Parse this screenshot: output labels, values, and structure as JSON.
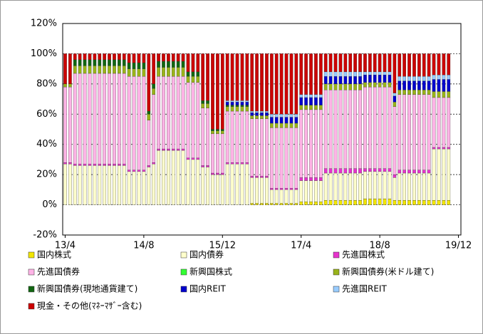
{
  "chart_data": {
    "type": "stacked_bar",
    "categories": [
      "13/4",
      null,
      null,
      null,
      null,
      null,
      null,
      null,
      null,
      null,
      null,
      null,
      null,
      null,
      null,
      null,
      "14/8",
      null,
      null,
      null,
      null,
      null,
      null,
      null,
      null,
      null,
      null,
      null,
      null,
      null,
      null,
      null,
      "15/12",
      null,
      null,
      null,
      null,
      null,
      null,
      null,
      null,
      null,
      null,
      null,
      null,
      null,
      null,
      null,
      "17/4",
      null,
      null,
      null,
      null,
      null,
      null,
      null,
      null,
      null,
      null,
      null,
      null,
      null,
      null,
      null,
      "18/8",
      null,
      null,
      null,
      null,
      null,
      null,
      null,
      null,
      null,
      null,
      null,
      null,
      null,
      null,
      null,
      "19/12"
    ],
    "series": [
      {
        "name": "国内株式",
        "color": "#f2e600",
        "values": [
          0,
          0,
          0,
          0,
          0,
          0,
          0,
          0,
          0,
          0,
          0,
          0,
          0,
          0,
          0,
          0,
          0,
          0,
          0,
          0,
          0,
          0,
          0,
          0,
          0,
          0,
          0,
          0,
          0,
          0,
          0,
          0,
          0,
          0,
          0,
          0,
          0,
          0,
          1,
          1,
          1,
          1,
          1,
          1,
          1,
          1,
          1,
          1,
          2,
          2,
          2,
          2,
          2,
          3,
          3,
          3,
          3,
          3,
          3,
          3,
          3,
          4,
          4,
          4,
          4,
          4,
          4,
          3,
          3,
          3,
          3,
          3,
          3,
          3,
          3,
          3,
          3,
          3,
          3,
          null,
          null
        ]
      },
      {
        "name": "国内債券",
        "color": "#ffffcc",
        "values": [
          27,
          27,
          26,
          26,
          26,
          26,
          26,
          26,
          26,
          26,
          26,
          26,
          26,
          22,
          22,
          22,
          22,
          25,
          27,
          36,
          36,
          36,
          36,
          36,
          36,
          30,
          30,
          30,
          25,
          25,
          20,
          20,
          20,
          27,
          27,
          27,
          27,
          27,
          17,
          17,
          17,
          17,
          9,
          9,
          9,
          9,
          9,
          9,
          14,
          14,
          14,
          14,
          14,
          18,
          18,
          18,
          18,
          18,
          18,
          18,
          18,
          18,
          18,
          18,
          18,
          18,
          18,
          15,
          18,
          18,
          18,
          18,
          18,
          18,
          18,
          34,
          34,
          34,
          34,
          null,
          null
        ]
      },
      {
        "name": "先進国株式",
        "color": "#e633cc",
        "values": [
          1,
          1,
          1,
          1,
          1,
          1,
          1,
          1,
          1,
          1,
          1,
          1,
          1,
          1,
          1,
          1,
          1,
          1,
          1,
          1,
          1,
          1,
          1,
          1,
          1,
          1,
          1,
          1,
          1,
          1,
          1,
          1,
          1,
          1,
          1,
          1,
          1,
          1,
          1,
          1,
          1,
          1,
          1,
          1,
          1,
          1,
          1,
          1,
          2,
          2,
          2,
          2,
          2,
          3,
          3,
          3,
          3,
          3,
          3,
          3,
          3,
          2,
          2,
          2,
          2,
          2,
          2,
          2,
          2,
          2,
          2,
          2,
          2,
          2,
          2,
          1,
          1,
          1,
          1,
          null,
          null
        ]
      },
      {
        "name": "先進国債券",
        "color": "#ffb3e6",
        "values": [
          50,
          50,
          60,
          60,
          60,
          60,
          60,
          60,
          60,
          60,
          60,
          60,
          60,
          62,
          62,
          62,
          62,
          30,
          45,
          48,
          48,
          48,
          48,
          48,
          48,
          50,
          50,
          50,
          38,
          38,
          26,
          26,
          26,
          34,
          34,
          34,
          34,
          34,
          38,
          38,
          38,
          38,
          40,
          40,
          40,
          40,
          40,
          40,
          45,
          45,
          45,
          45,
          45,
          52,
          52,
          52,
          52,
          52,
          52,
          52,
          52,
          54,
          54,
          54,
          54,
          54,
          54,
          45,
          50,
          50,
          50,
          50,
          50,
          50,
          50,
          33,
          33,
          33,
          33,
          null,
          null
        ]
      },
      {
        "name": "新興国株式",
        "color": "#33ff33",
        "values": [
          0,
          0,
          0,
          0,
          0,
          0,
          0,
          0,
          0,
          0,
          0,
          0,
          0,
          0,
          0,
          0,
          0,
          0,
          0,
          0,
          0,
          0,
          0,
          0,
          0,
          0,
          0,
          0,
          0,
          0,
          0,
          0,
          0,
          0,
          0,
          0,
          0,
          0,
          0,
          0,
          0,
          0,
          0,
          0,
          0,
          0,
          0,
          0,
          0,
          0,
          0,
          0,
          0,
          0,
          0,
          0,
          0,
          0,
          0,
          0,
          0,
          0,
          0,
          0,
          0,
          0,
          0,
          0,
          0,
          0,
          0,
          0,
          0,
          0,
          0,
          0,
          0,
          0,
          0,
          null,
          null
        ]
      },
      {
        "name": "新興国債券(米ドル建て)",
        "color": "#99b31a",
        "values": [
          2,
          2,
          5,
          5,
          5,
          5,
          5,
          5,
          5,
          5,
          5,
          5,
          5,
          5,
          5,
          5,
          5,
          4,
          4,
          6,
          6,
          6,
          6,
          6,
          6,
          4,
          4,
          4,
          3,
          3,
          2,
          2,
          2,
          3,
          3,
          3,
          3,
          3,
          2,
          2,
          2,
          2,
          3,
          3,
          3,
          3,
          3,
          3,
          3,
          3,
          3,
          3,
          3,
          4,
          4,
          4,
          4,
          4,
          4,
          4,
          4,
          3,
          3,
          3,
          3,
          3,
          3,
          3,
          3,
          3,
          3,
          3,
          3,
          3,
          3,
          4,
          4,
          4,
          4,
          null,
          null
        ]
      },
      {
        "name": "新興国債券(現地通貨建て)",
        "color": "#116611",
        "values": [
          0,
          0,
          4,
          4,
          4,
          4,
          4,
          4,
          4,
          4,
          4,
          4,
          4,
          4,
          4,
          4,
          4,
          2,
          3,
          4,
          4,
          4,
          4,
          4,
          4,
          3,
          3,
          3,
          2,
          2,
          1,
          1,
          1,
          1,
          1,
          1,
          1,
          1,
          0,
          0,
          0,
          0,
          0,
          0,
          0,
          0,
          0,
          0,
          0,
          0,
          0,
          0,
          0,
          0,
          0,
          0,
          0,
          0,
          0,
          0,
          0,
          0,
          0,
          0,
          0,
          0,
          0,
          0,
          0,
          0,
          0,
          0,
          0,
          0,
          0,
          0,
          0,
          0,
          0,
          null,
          null
        ]
      },
      {
        "name": "国内REIT",
        "color": "#0000cc",
        "values": [
          0,
          0,
          0,
          0,
          0,
          0,
          0,
          0,
          0,
          0,
          0,
          0,
          0,
          0,
          0,
          0,
          0,
          0,
          0,
          0,
          0,
          0,
          0,
          0,
          0,
          0,
          0,
          0,
          0,
          0,
          0,
          0,
          0,
          2,
          2,
          2,
          2,
          2,
          2,
          2,
          2,
          2,
          4,
          4,
          4,
          4,
          4,
          4,
          5,
          5,
          5,
          5,
          5,
          5,
          5,
          5,
          5,
          5,
          5,
          5,
          5,
          5,
          5,
          5,
          5,
          5,
          5,
          4,
          6,
          6,
          6,
          6,
          6,
          6,
          6,
          8,
          8,
          8,
          8,
          null,
          null
        ]
      },
      {
        "name": "先進国REIT",
        "color": "#99ccff",
        "values": [
          0,
          0,
          0,
          0,
          0,
          0,
          0,
          0,
          0,
          0,
          0,
          0,
          0,
          0,
          0,
          0,
          0,
          0,
          0,
          0,
          0,
          0,
          0,
          0,
          0,
          0,
          0,
          0,
          0,
          0,
          0,
          0,
          0,
          1,
          1,
          1,
          1,
          1,
          1,
          1,
          1,
          1,
          2,
          2,
          2,
          2,
          2,
          2,
          2,
          2,
          2,
          2,
          2,
          3,
          3,
          3,
          3,
          3,
          3,
          3,
          3,
          2,
          2,
          2,
          2,
          2,
          2,
          2,
          3,
          3,
          3,
          3,
          3,
          3,
          3,
          3,
          3,
          3,
          3,
          null,
          null
        ]
      },
      {
        "name": "現金・その他(ﾏﾈｰﾏｻﾞｰ含む)",
        "color": "#cc0000",
        "values": [
          20,
          20,
          4,
          4,
          4,
          4,
          4,
          4,
          4,
          4,
          4,
          4,
          4,
          6,
          6,
          6,
          6,
          38,
          20,
          5,
          5,
          5,
          5,
          5,
          5,
          12,
          12,
          12,
          31,
          31,
          50,
          50,
          50,
          31,
          31,
          31,
          31,
          31,
          38,
          38,
          38,
          38,
          40,
          40,
          40,
          40,
          40,
          40,
          27,
          27,
          27,
          27,
          27,
          12,
          12,
          12,
          12,
          12,
          12,
          12,
          12,
          12,
          12,
          12,
          12,
          12,
          12,
          26,
          15,
          15,
          15,
          15,
          15,
          15,
          15,
          14,
          14,
          14,
          14,
          null,
          null
        ]
      }
    ],
    "ylim": [
      -20,
      120
    ],
    "yticks": [
      {
        "value": -20,
        "label": "-20%"
      },
      {
        "value": 0,
        "label": "0%"
      },
      {
        "value": 20,
        "label": "20%"
      },
      {
        "value": 40,
        "label": "40%"
      },
      {
        "value": 60,
        "label": "60%"
      },
      {
        "value": 80,
        "label": "80%"
      },
      {
        "value": 100,
        "label": "100%"
      },
      {
        "value": 120,
        "label": "120%"
      }
    ],
    "grid": true,
    "legend": "bottom"
  }
}
